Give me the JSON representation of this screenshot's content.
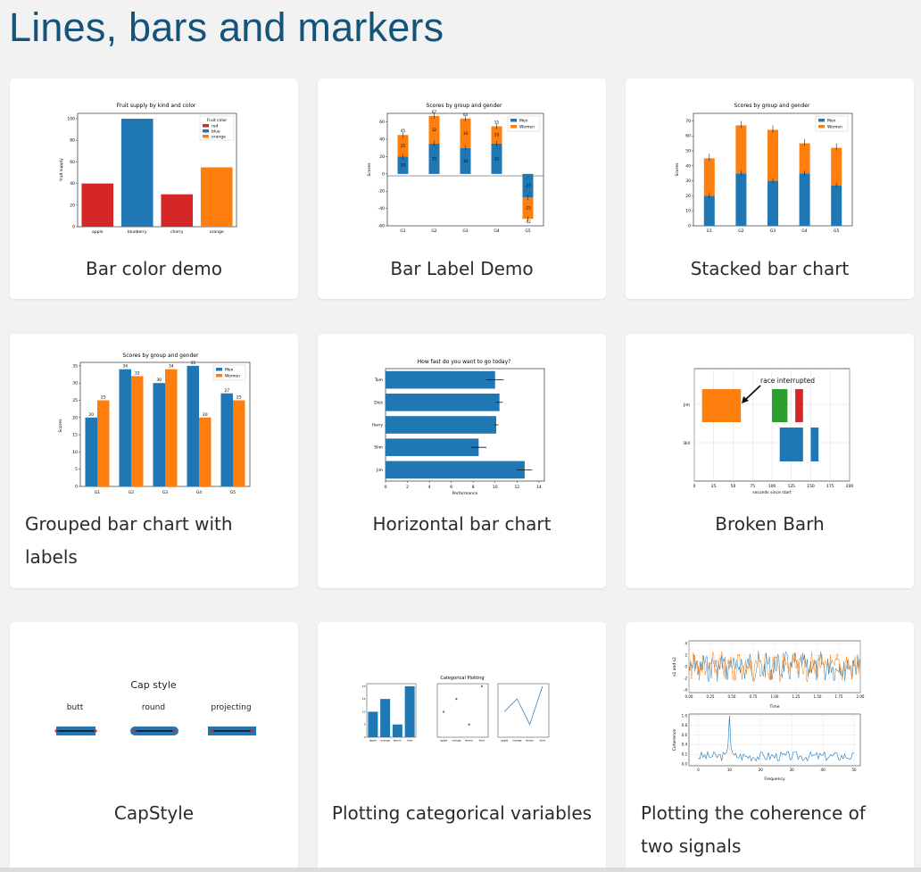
{
  "page": {
    "title": "Lines, bars and markers"
  },
  "colors": {
    "blue": "#1f77b4",
    "orange": "#ff7f0e",
    "red": "#d62728",
    "green": "#2ca02c",
    "heading": "#14547a"
  },
  "gallery": [
    {
      "label": "Bar color demo"
    },
    {
      "label": "Bar Label Demo"
    },
    {
      "label": "Stacked bar chart"
    },
    {
      "label": "Grouped bar chart with labels"
    },
    {
      "label": "Horizontal bar chart"
    },
    {
      "label": "Broken Barh"
    },
    {
      "label": "CapStyle"
    },
    {
      "label": "Plotting categorical variables"
    },
    {
      "label": "Plotting the coherence of two signals"
    }
  ],
  "thumbs": {
    "bar_color": {
      "title": "Fruit supply by kind and color",
      "ylabel": "fruit supply",
      "yticks": [
        "0",
        "20",
        "40",
        "60",
        "80",
        "100"
      ],
      "legend_title": "Fruit color",
      "legend": [
        "red",
        "blue",
        "orange"
      ]
    },
    "bar_label": {
      "title": "Scores by group and gender",
      "ylabel": "Scores",
      "yticks": [
        "60",
        "40",
        "20",
        "0",
        "-20",
        "-40",
        "-60"
      ],
      "legend": [
        "Men",
        "Women"
      ]
    },
    "stacked": {
      "title": "Scores by group and gender",
      "ylabel": "Scores",
      "yticks": [
        "0",
        "10",
        "20",
        "30",
        "40",
        "50",
        "60",
        "70"
      ],
      "legend": [
        "Men",
        "Women"
      ]
    },
    "grouped": {
      "title": "Scores by group and gender",
      "ylabel": "Scores",
      "yticks": [
        "0",
        "5",
        "10",
        "15",
        "20",
        "25",
        "30",
        "35"
      ],
      "legend": [
        "Men",
        "Women"
      ]
    },
    "horizontal": {
      "title": "How fast do you want to go today?",
      "xlabel": "Performance",
      "xticks": [
        "0",
        "2",
        "4",
        "6",
        "8",
        "10",
        "12",
        "14"
      ]
    },
    "broken_barh": {
      "annotation": "race interrupted",
      "ylabels": [
        "Jim",
        "Bill"
      ],
      "xticks": [
        "0",
        "25",
        "50",
        "75",
        "100",
        "125",
        "150",
        "175",
        "200"
      ],
      "xlabel": "seconds since start"
    },
    "capstyle": {
      "title": "Cap style",
      "styles": [
        "butt",
        "round",
        "projecting"
      ]
    },
    "categorical": {
      "suptitle": "Categorical Plotting",
      "yticks": [
        "0",
        "5",
        "10",
        "15",
        "20"
      ]
    },
    "coherence": {
      "xlabel_top": "Time",
      "ylabel_top": "s1 and s2",
      "xticks_top": [
        "0.00",
        "0.25",
        "0.50",
        "0.75",
        "1.00",
        "1.25",
        "1.50",
        "1.75",
        "2.00"
      ],
      "yticks_top": [
        "4",
        "2",
        "0",
        "-2",
        "-4"
      ],
      "xlabel_bottom": "Frequency",
      "ylabel_bottom": "Coherence",
      "xticks_bottom": [
        "0",
        "10",
        "20",
        "30",
        "40",
        "50"
      ],
      "yticks_bottom": [
        "1.0",
        "0.8",
        "0.6",
        "0.4",
        "0.2",
        "0.0"
      ]
    }
  },
  "chart_data": [
    {
      "type": "bar",
      "title": "Fruit supply by kind and color",
      "categories": [
        "apple",
        "blueberry",
        "cherry",
        "orange"
      ],
      "values": [
        40,
        100,
        30,
        55
      ],
      "colors": [
        "#d62728",
        "#1f77b4",
        "#d62728",
        "#ff7f0e"
      ],
      "ylabel": "fruit supply",
      "ylim": [
        0,
        105
      ]
    },
    {
      "type": "bar",
      "title": "Scores by group and gender",
      "categories": [
        "G1",
        "G2",
        "G3",
        "G4",
        "G5"
      ],
      "series": [
        {
          "name": "Men",
          "values": [
            20,
            35,
            30,
            35,
            -27
          ]
        },
        {
          "name": "Women",
          "values": [
            25,
            32,
            34,
            20,
            -25
          ]
        }
      ],
      "totals": [
        45,
        67,
        64,
        55,
        -52
      ],
      "ylabel": "Scores",
      "ylim": [
        -60,
        70
      ]
    },
    {
      "type": "bar",
      "title": "Scores by group and gender",
      "categories": [
        "G1",
        "G2",
        "G3",
        "G4",
        "G5"
      ],
      "series": [
        {
          "name": "Men",
          "values": [
            20,
            35,
            30,
            35,
            27
          ]
        },
        {
          "name": "Women",
          "values": [
            25,
            32,
            34,
            20,
            25
          ]
        }
      ],
      "ylabel": "Scores",
      "ylim": [
        0,
        75
      ]
    },
    {
      "type": "bar",
      "title": "Scores by group and gender",
      "categories": [
        "G1",
        "G2",
        "G3",
        "G4",
        "G5"
      ],
      "series": [
        {
          "name": "Men",
          "values": [
            20,
            34,
            30,
            35,
            27
          ]
        },
        {
          "name": "Women",
          "values": [
            25,
            32,
            34,
            20,
            25
          ]
        }
      ],
      "ylabel": "Scores",
      "ylim": [
        0,
        36
      ]
    },
    {
      "type": "bar",
      "orientation": "horizontal",
      "title": "How fast do you want to go today?",
      "categories": [
        "Tom",
        "Dick",
        "Harry",
        "Slim",
        "Jim"
      ],
      "values": [
        10,
        10.4,
        10.1,
        8.5,
        12.7
      ],
      "errors": [
        0.8,
        0.3,
        0.2,
        0.7,
        0.7
      ],
      "xlabel": "Performance",
      "xlim": [
        0,
        14.5
      ]
    },
    {
      "type": "bar",
      "subtype": "broken_barh",
      "categories": [
        "Jim",
        "Bill"
      ],
      "segments": {
        "Jim": [
          [
            10,
            50
          ],
          [
            100,
            20
          ],
          [
            130,
            10
          ]
        ],
        "Bill": [
          [
            110,
            30
          ],
          [
            150,
            10
          ]
        ]
      },
      "xlabel": "seconds since start",
      "xlim": [
        0,
        200
      ],
      "annotation": "race interrupted"
    },
    {
      "type": "bar",
      "title": "Categorical Plotting",
      "categories": [
        "apple",
        "orange",
        "lemon",
        "lime"
      ],
      "values": [
        10,
        15,
        5,
        20
      ],
      "ylim": [
        0,
        21
      ]
    },
    {
      "type": "line",
      "title": "Coherence of two signals",
      "x": [
        0,
        5,
        10,
        15,
        20,
        25,
        30,
        35,
        40,
        45,
        50
      ],
      "values": [
        0.1,
        0.2,
        1.0,
        0.15,
        0.12,
        0.18,
        0.1,
        0.2,
        0.12,
        0.15,
        0.1
      ],
      "xlabel": "Frequency",
      "ylabel": "Coherence",
      "ylim": [
        0,
        1
      ]
    }
  ]
}
